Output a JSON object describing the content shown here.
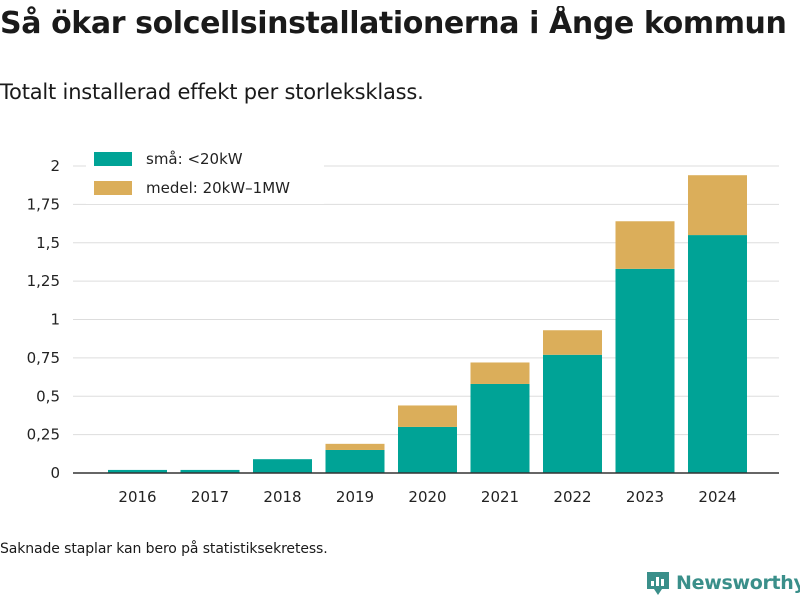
{
  "header": {
    "title": "Så ökar solcellsinstallationerna i Ånge kommun",
    "subtitle": "Totalt installerad effekt per storleksklass."
  },
  "footer": {
    "note": "Saknade staplar kan bero på statistiksekretess.",
    "brand": "Newsworthy"
  },
  "colors": {
    "small": "#00a396",
    "medium": "#dbae5a",
    "grid": "#dddddd",
    "axis": "#333333",
    "brand": "#3a8f8a"
  },
  "chart_data": {
    "type": "bar",
    "stacked": true,
    "categories": [
      "2016",
      "2017",
      "2018",
      "2019",
      "2020",
      "2021",
      "2022",
      "2023",
      "2024"
    ],
    "series": [
      {
        "name": "små: <20kW",
        "color": "#00a396",
        "values": [
          0.02,
          0.02,
          0.09,
          0.15,
          0.3,
          0.58,
          0.77,
          1.33,
          1.55
        ]
      },
      {
        "name": "medel: 20kW–1MW",
        "color": "#dbae5a",
        "values": [
          0,
          0,
          0,
          0.04,
          0.14,
          0.14,
          0.16,
          0.31,
          0.39
        ]
      }
    ],
    "ylim": [
      0,
      2
    ],
    "yticks": [
      {
        "value": 0,
        "label": "0"
      },
      {
        "value": 0.25,
        "label": "0,25"
      },
      {
        "value": 0.5,
        "label": "0,5"
      },
      {
        "value": 0.75,
        "label": "0,75"
      },
      {
        "value": 1,
        "label": "1"
      },
      {
        "value": 1.25,
        "label": "1,25"
      },
      {
        "value": 1.5,
        "label": "1,5"
      },
      {
        "value": 1.75,
        "label": "1,75"
      },
      {
        "value": 2,
        "label": "2"
      }
    ],
    "grid": true,
    "legend_position": "top-left",
    "xlabel": "",
    "ylabel": ""
  }
}
